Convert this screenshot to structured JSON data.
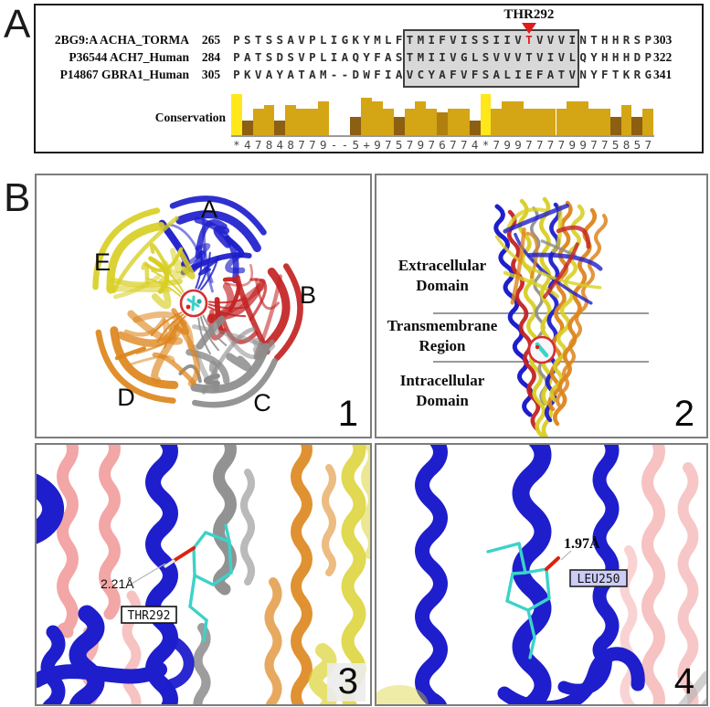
{
  "panel_a": {
    "label": "A",
    "pointer_label": "THR292",
    "pointer_column": 28,
    "box_start_column": 17,
    "box_end_column": 32,
    "rows": [
      {
        "name": "2BG9:A ACHA_TORMA",
        "start": "265",
        "end": "303",
        "sequence": "PSTSSAVPLIGKYMLFTMIFVISSIIVTVVVINTHHRSP",
        "red_column": 28
      },
      {
        "name": "P36544 ACH7_Human",
        "start": "284",
        "end": "322",
        "sequence": "PATSDSVPLIAQYFASTMIIVGLSVVVTVIVLQYHHHDP"
      },
      {
        "name": "P14867 GBRA1_Human",
        "start": "305",
        "end": "341",
        "sequence": "PKVAYATAM--DWFIAVCYAFVFSALIEFATVNYFTKRG"
      }
    ],
    "conservation_label": "Conservation",
    "conservation_scores": "*47848779--5+9757976774*799777799775857"
  },
  "panel_b": {
    "label": "B",
    "subpanel_1": {
      "number": "1",
      "chain_labels": [
        "A",
        "B",
        "C",
        "D",
        "E"
      ]
    },
    "subpanel_2": {
      "number": "2",
      "region_labels": [
        [
          "Extracellular",
          "Domain"
        ],
        [
          "Transmembrane",
          "Region"
        ],
        [
          "Intracellular",
          "Domain"
        ]
      ]
    },
    "subpanel_3": {
      "number": "3",
      "distance_label": "2.21Å",
      "residue_label": "THR292"
    },
    "subpanel_4": {
      "number": "4",
      "distance_label": "1.97Å",
      "residue_label": "LEU250"
    }
  },
  "colors": {
    "cons_identity": "#FFE71A",
    "cons_high": "#D4A514",
    "cons_mid": "#B0800E",
    "cons_low": "#8C5F12",
    "highlight_red": "#E21A1A",
    "box_bg": "#D8D8D8",
    "chain_blue": "#1E1ECC",
    "chain_red": "#C32323",
    "chain_gray": "#8C8C8C",
    "chain_orange": "#DD851C",
    "chain_yellow": "#D8CF25",
    "salmon": "#F09090",
    "ligand_cyan": "#3CD2C8",
    "oxygen_red": "#DD2211",
    "leu_label_bg": "#CCCCF8",
    "membrane_line": "#9A9A9A"
  }
}
